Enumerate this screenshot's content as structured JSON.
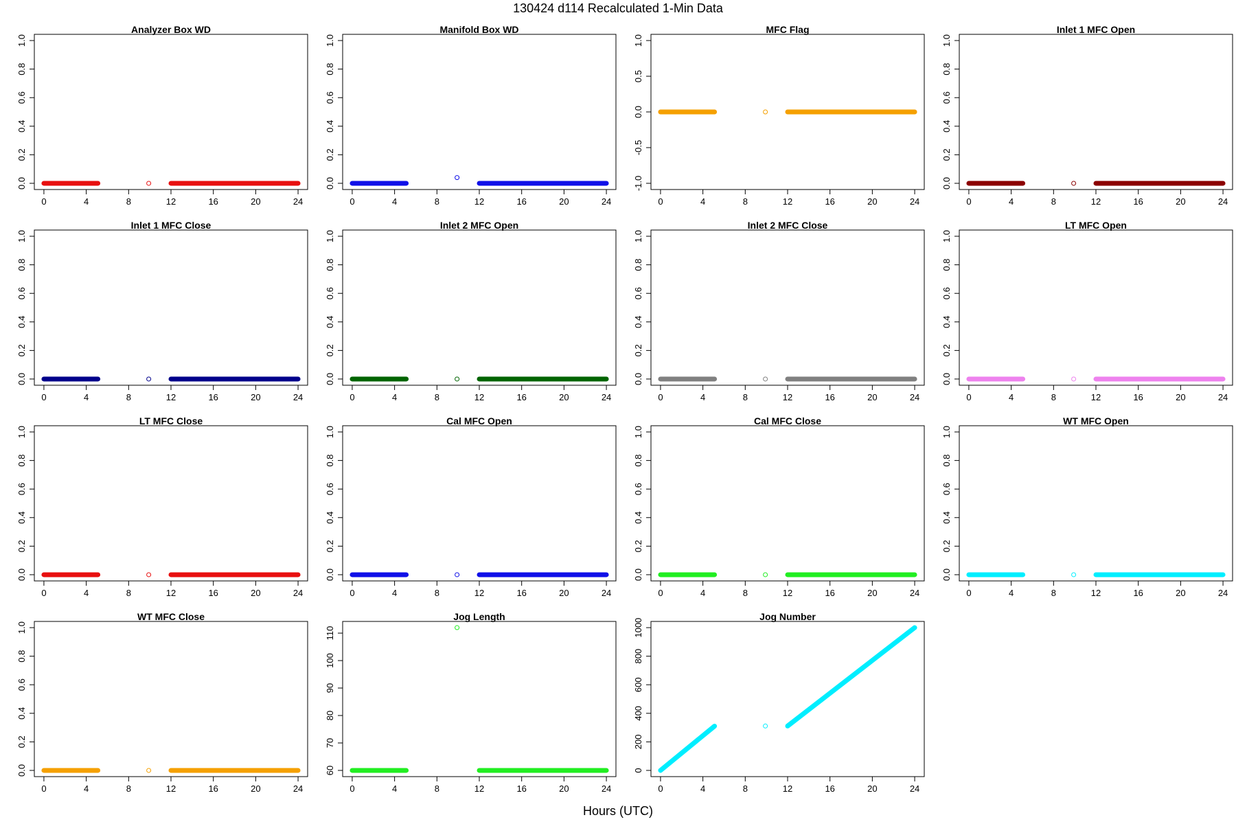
{
  "figure": {
    "title": "130424   d114   Recalculated 1-Min Data",
    "xlabel": "Hours (UTC)"
  },
  "chart_data": [
    {
      "type": "scatter",
      "title": "Analyzer Box WD",
      "color": "#e81010",
      "xlim": [
        0,
        24
      ],
      "ylim": [
        0,
        1
      ],
      "xticks": [
        0,
        4,
        8,
        12,
        16,
        20,
        24
      ],
      "yticks": [
        "0.0",
        "0.2",
        "0.4",
        "0.6",
        "0.8",
        "1.0"
      ],
      "series": [
        {
          "segments": [
            {
              "x": [
                0,
                5.1
              ],
              "y": [
                0,
                0
              ]
            },
            {
              "x": [
                12,
                24
              ],
              "y": [
                0,
                0
              ]
            }
          ],
          "outlier": {
            "x": 9.9,
            "y": 0
          }
        }
      ]
    },
    {
      "type": "scatter",
      "title": "Manifold Box WD",
      "color": "#1010e8",
      "xlim": [
        0,
        24
      ],
      "ylim": [
        0,
        1
      ],
      "xticks": [
        0,
        4,
        8,
        12,
        16,
        20,
        24
      ],
      "yticks": [
        "0.0",
        "0.2",
        "0.4",
        "0.6",
        "0.8",
        "1.0"
      ],
      "series": [
        {
          "segments": [
            {
              "x": [
                0,
                5.1
              ],
              "y": [
                0,
                0
              ]
            },
            {
              "x": [
                12,
                24
              ],
              "y": [
                0,
                0
              ]
            }
          ],
          "outlier": {
            "x": 9.9,
            "y": 0.04
          }
        }
      ]
    },
    {
      "type": "scatter",
      "title": "MFC Flag",
      "color": "#f5a000",
      "xlim": [
        0,
        24
      ],
      "ylim": [
        -1,
        1
      ],
      "xticks": [
        0,
        4,
        8,
        12,
        16,
        20,
        24
      ],
      "yticks": [
        "-1.0",
        "-0.5",
        "0.0",
        "0.5",
        "1.0"
      ],
      "series": [
        {
          "segments": [
            {
              "x": [
                0,
                5.1
              ],
              "y": [
                0,
                0
              ]
            },
            {
              "x": [
                12,
                24
              ],
              "y": [
                0,
                0
              ]
            }
          ],
          "outlier": {
            "x": 9.9,
            "y": 0
          }
        }
      ]
    },
    {
      "type": "scatter",
      "title": "Inlet 1 MFC Open",
      "color": "#8b0000",
      "xlim": [
        0,
        24
      ],
      "ylim": [
        0,
        1
      ],
      "xticks": [
        0,
        4,
        8,
        12,
        16,
        20,
        24
      ],
      "yticks": [
        "0.0",
        "0.2",
        "0.4",
        "0.6",
        "0.8",
        "1.0"
      ],
      "series": [
        {
          "segments": [
            {
              "x": [
                0,
                5.1
              ],
              "y": [
                0,
                0
              ]
            },
            {
              "x": [
                12,
                24
              ],
              "y": [
                0,
                0
              ]
            }
          ],
          "outlier": {
            "x": 9.9,
            "y": 0
          }
        }
      ]
    },
    {
      "type": "scatter",
      "title": "Inlet 1 MFC Close",
      "color": "#00008b",
      "xlim": [
        0,
        24
      ],
      "ylim": [
        0,
        1
      ],
      "xticks": [
        0,
        4,
        8,
        12,
        16,
        20,
        24
      ],
      "yticks": [
        "0.0",
        "0.2",
        "0.4",
        "0.6",
        "0.8",
        "1.0"
      ],
      "series": [
        {
          "segments": [
            {
              "x": [
                0,
                5.1
              ],
              "y": [
                0,
                0
              ]
            },
            {
              "x": [
                12,
                24
              ],
              "y": [
                0,
                0
              ]
            }
          ],
          "outlier": {
            "x": 9.9,
            "y": 0
          }
        }
      ]
    },
    {
      "type": "scatter",
      "title": "Inlet 2 MFC Open",
      "color": "#006400",
      "xlim": [
        0,
        24
      ],
      "ylim": [
        0,
        1
      ],
      "xticks": [
        0,
        4,
        8,
        12,
        16,
        20,
        24
      ],
      "yticks": [
        "0.0",
        "0.2",
        "0.4",
        "0.6",
        "0.8",
        "1.0"
      ],
      "series": [
        {
          "segments": [
            {
              "x": [
                0,
                5.1
              ],
              "y": [
                0,
                0
              ]
            },
            {
              "x": [
                12,
                24
              ],
              "y": [
                0,
                0
              ]
            }
          ],
          "outlier": {
            "x": 9.9,
            "y": 0
          }
        }
      ]
    },
    {
      "type": "scatter",
      "title": "Inlet 2 MFC Close",
      "color": "#808080",
      "xlim": [
        0,
        24
      ],
      "ylim": [
        0,
        1
      ],
      "xticks": [
        0,
        4,
        8,
        12,
        16,
        20,
        24
      ],
      "yticks": [
        "0.0",
        "0.2",
        "0.4",
        "0.6",
        "0.8",
        "1.0"
      ],
      "series": [
        {
          "segments": [
            {
              "x": [
                0,
                5.1
              ],
              "y": [
                0,
                0
              ]
            },
            {
              "x": [
                12,
                24
              ],
              "y": [
                0,
                0
              ]
            }
          ],
          "outlier": {
            "x": 9.9,
            "y": 0
          }
        }
      ]
    },
    {
      "type": "scatter",
      "title": "LT MFC Open",
      "color": "#ee82ee",
      "xlim": [
        0,
        24
      ],
      "ylim": [
        0,
        1
      ],
      "xticks": [
        0,
        4,
        8,
        12,
        16,
        20,
        24
      ],
      "yticks": [
        "0.0",
        "0.2",
        "0.4",
        "0.6",
        "0.8",
        "1.0"
      ],
      "series": [
        {
          "segments": [
            {
              "x": [
                0,
                5.1
              ],
              "y": [
                0,
                0
              ]
            },
            {
              "x": [
                12,
                24
              ],
              "y": [
                0,
                0
              ]
            }
          ],
          "outlier": {
            "x": 9.9,
            "y": 0
          }
        }
      ]
    },
    {
      "type": "scatter",
      "title": "LT MFC Close",
      "color": "#e81010",
      "xlim": [
        0,
        24
      ],
      "ylim": [
        0,
        1
      ],
      "xticks": [
        0,
        4,
        8,
        12,
        16,
        20,
        24
      ],
      "yticks": [
        "0.0",
        "0.2",
        "0.4",
        "0.6",
        "0.8",
        "1.0"
      ],
      "series": [
        {
          "segments": [
            {
              "x": [
                0,
                5.1
              ],
              "y": [
                0,
                0
              ]
            },
            {
              "x": [
                12,
                24
              ],
              "y": [
                0,
                0
              ]
            }
          ],
          "outlier": {
            "x": 9.9,
            "y": 0
          }
        }
      ]
    },
    {
      "type": "scatter",
      "title": "Cal MFC Open",
      "color": "#1010e8",
      "xlim": [
        0,
        24
      ],
      "ylim": [
        0,
        1
      ],
      "xticks": [
        0,
        4,
        8,
        12,
        16,
        20,
        24
      ],
      "yticks": [
        "0.0",
        "0.2",
        "0.4",
        "0.6",
        "0.8",
        "1.0"
      ],
      "series": [
        {
          "segments": [
            {
              "x": [
                0,
                5.1
              ],
              "y": [
                0,
                0
              ]
            },
            {
              "x": [
                12,
                24
              ],
              "y": [
                0,
                0
              ]
            }
          ],
          "outlier": {
            "x": 9.9,
            "y": 0
          }
        }
      ]
    },
    {
      "type": "scatter",
      "title": "Cal MFC Close",
      "color": "#22ee22",
      "xlim": [
        0,
        24
      ],
      "ylim": [
        0,
        1
      ],
      "xticks": [
        0,
        4,
        8,
        12,
        16,
        20,
        24
      ],
      "yticks": [
        "0.0",
        "0.2",
        "0.4",
        "0.6",
        "0.8",
        "1.0"
      ],
      "series": [
        {
          "segments": [
            {
              "x": [
                0,
                5.1
              ],
              "y": [
                0,
                0
              ]
            },
            {
              "x": [
                12,
                24
              ],
              "y": [
                0,
                0
              ]
            }
          ],
          "outlier": {
            "x": 9.9,
            "y": 0
          }
        }
      ]
    },
    {
      "type": "scatter",
      "title": "WT MFC Open",
      "color": "#00eeff",
      "xlim": [
        0,
        24
      ],
      "ylim": [
        0,
        1
      ],
      "xticks": [
        0,
        4,
        8,
        12,
        16,
        20,
        24
      ],
      "yticks": [
        "0.0",
        "0.2",
        "0.4",
        "0.6",
        "0.8",
        "1.0"
      ],
      "series": [
        {
          "segments": [
            {
              "x": [
                0,
                5.1
              ],
              "y": [
                0,
                0
              ]
            },
            {
              "x": [
                12,
                24
              ],
              "y": [
                0,
                0
              ]
            }
          ],
          "outlier": {
            "x": 9.9,
            "y": 0
          }
        }
      ]
    },
    {
      "type": "scatter",
      "title": "WT MFC Close",
      "color": "#f5a000",
      "xlim": [
        0,
        24
      ],
      "ylim": [
        0,
        1
      ],
      "xticks": [
        0,
        4,
        8,
        12,
        16,
        20,
        24
      ],
      "yticks": [
        "0.0",
        "0.2",
        "0.4",
        "0.6",
        "0.8",
        "1.0"
      ],
      "series": [
        {
          "segments": [
            {
              "x": [
                0,
                5.1
              ],
              "y": [
                0,
                0
              ]
            },
            {
              "x": [
                12,
                24
              ],
              "y": [
                0,
                0
              ]
            }
          ],
          "outlier": {
            "x": 9.9,
            "y": 0
          }
        }
      ]
    },
    {
      "type": "scatter",
      "title": "Jog Length",
      "color": "#22ee22",
      "xlim": [
        0,
        24
      ],
      "ylim": [
        60,
        112
      ],
      "xticks": [
        0,
        4,
        8,
        12,
        16,
        20,
        24
      ],
      "yticks": [
        "60",
        "70",
        "80",
        "90",
        "100",
        "110"
      ],
      "series": [
        {
          "segments": [
            {
              "x": [
                0,
                5.1
              ],
              "y": [
                60,
                60
              ]
            },
            {
              "x": [
                12,
                24
              ],
              "y": [
                60,
                60
              ]
            }
          ],
          "outlier": {
            "x": 9.9,
            "y": 112
          }
        }
      ]
    },
    {
      "type": "scatter",
      "title": "Jog Number",
      "color": "#00eeff",
      "xlim": [
        0,
        24
      ],
      "ylim": [
        0,
        1000
      ],
      "xticks": [
        0,
        4,
        8,
        12,
        16,
        20,
        24
      ],
      "yticks": [
        "0",
        "200",
        "400",
        "600",
        "800",
        "1000"
      ],
      "series": [
        {
          "segments": [
            {
              "x": [
                0,
                5.1
              ],
              "y": [
                0,
                310
              ]
            },
            {
              "x": [
                12,
                24
              ],
              "y": [
                311,
                1000
              ]
            }
          ],
          "outlier": {
            "x": 9.9,
            "y": 311
          }
        }
      ]
    }
  ]
}
